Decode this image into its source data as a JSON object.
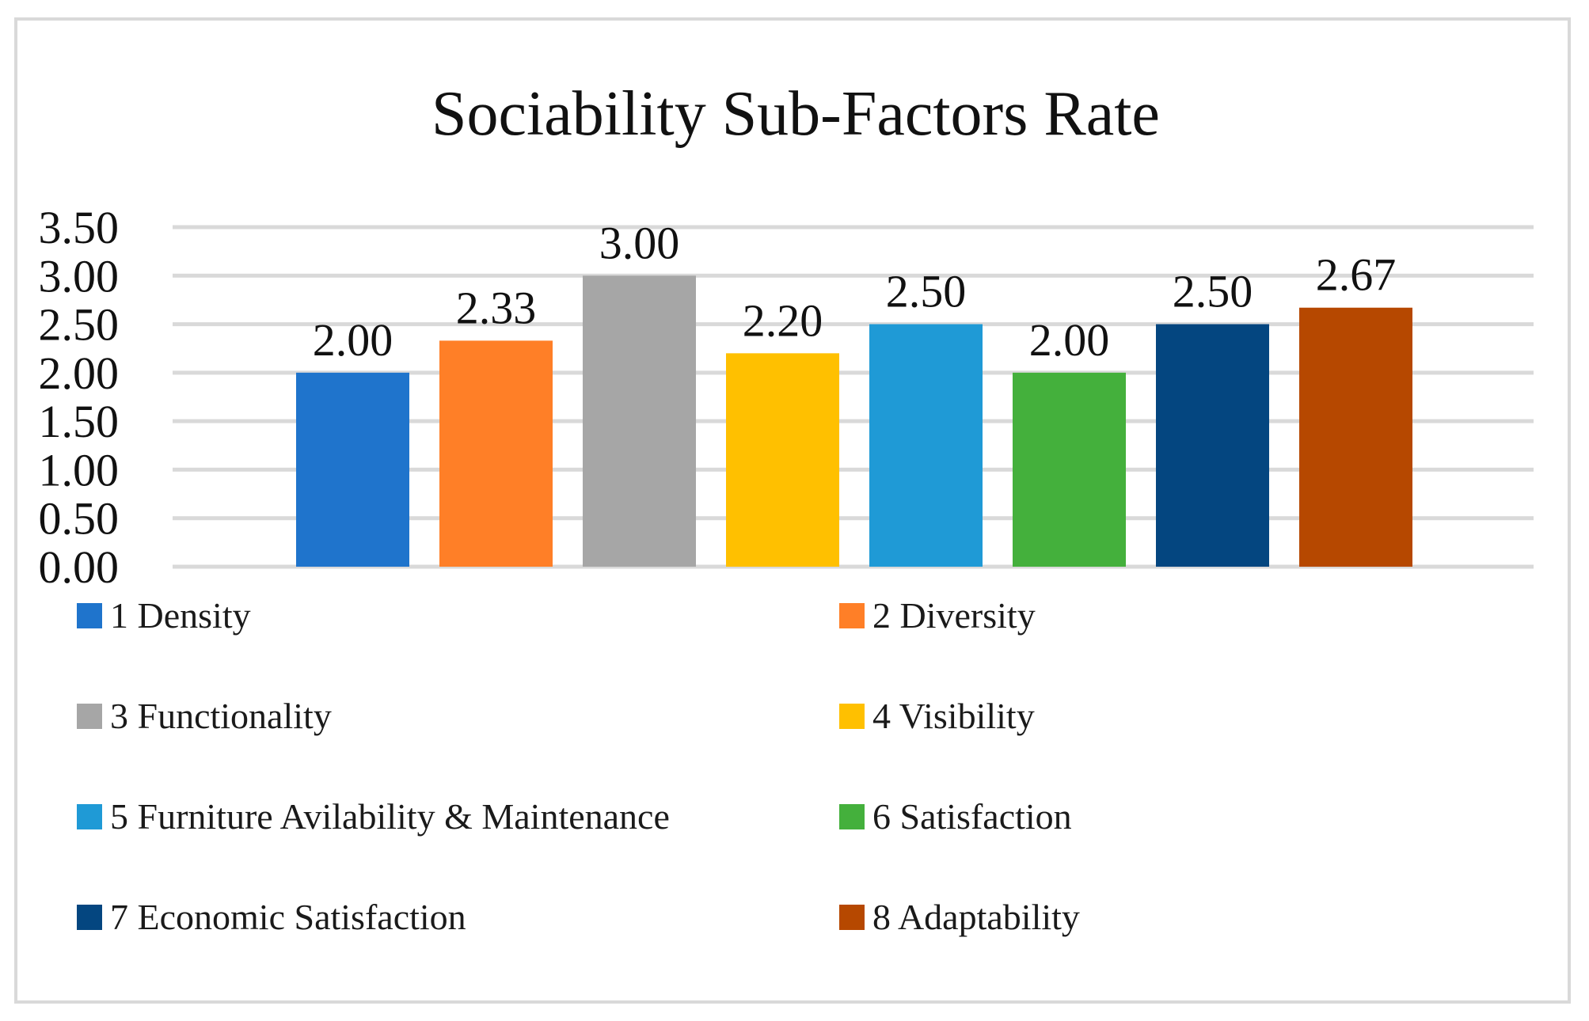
{
  "chart_data": {
    "type": "bar",
    "title": "Sociability Sub-Factors Rate",
    "categories": [
      "1 Density",
      "2 Diversity",
      "3 Functionality",
      "4 Visibility",
      "5 Furniture Avilability & Maintenance",
      "6 Satisfaction",
      "7 Economic Satisfaction",
      "8 Adaptability"
    ],
    "values": [
      2.0,
      2.33,
      3.0,
      2.2,
      2.5,
      2.0,
      2.5,
      2.67
    ],
    "data_labels": [
      "2.00",
      "2.33",
      "3.00",
      "2.20",
      "2.50",
      "2.00",
      "2.50",
      "2.67"
    ],
    "colors": [
      "#1f74cc",
      "#ff7f27",
      "#a6a6a6",
      "#ffc000",
      "#1f9ad6",
      "#44b03c",
      "#044680",
      "#b64800"
    ],
    "ylim": [
      0,
      3.5
    ],
    "yticks": [
      "0.00",
      "0.50",
      "1.00",
      "1.50",
      "2.00",
      "2.50",
      "3.00",
      "3.50"
    ],
    "grid": true,
    "legend_position": "bottom"
  }
}
